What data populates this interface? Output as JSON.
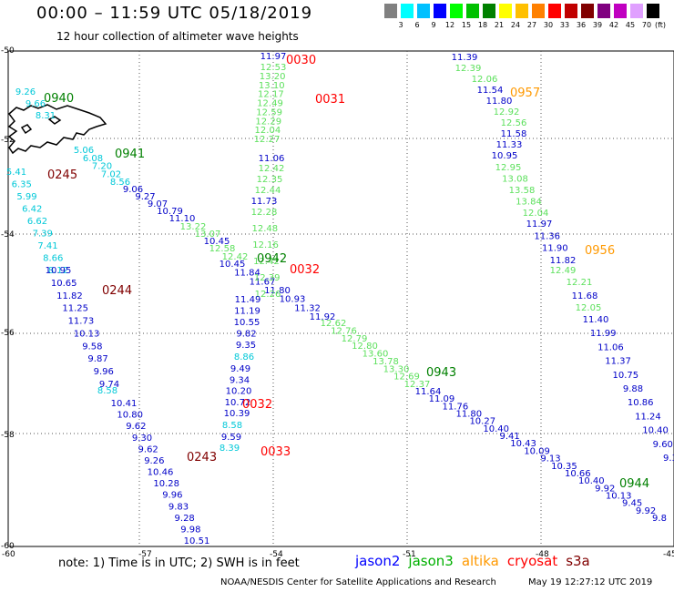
{
  "header": {
    "title": "00:00 – 11:59 UTC 05/18/2019",
    "subtitle": "12 hour collection of altimeter wave heights"
  },
  "color_scale": {
    "unit": "(ft)",
    "colors": [
      "#808080",
      "#00ffff",
      "#00c0ff",
      "#0000ff",
      "#00ff00",
      "#00c000",
      "#008000",
      "#ffff00",
      "#ffc000",
      "#ff8000",
      "#ff0000",
      "#c00000",
      "#800000",
      "#800080",
      "#c000c0",
      "#e0a0ff",
      "#000000"
    ],
    "labels": [
      "3",
      "6",
      "9",
      "12",
      "15",
      "18",
      "21",
      "24",
      "27",
      "30",
      "33",
      "36",
      "39",
      "42",
      "45",
      "70"
    ]
  },
  "axes": {
    "lat_labels": [
      "-50",
      "-52",
      "-54",
      "-56",
      "-58",
      "-60"
    ],
    "lon_labels": [
      "-60",
      "-57",
      "-54",
      "-51",
      "-48",
      "-45"
    ]
  },
  "colors": {
    "cyan": "#00c8d8",
    "blue": "#0000c8",
    "green": "#5ce05c",
    "dkgreen": "#008000",
    "red": "#ff0000",
    "maroon": "#800000",
    "orange": "#ff9900"
  },
  "labels": [
    {
      "t": "0940",
      "c": "dkgreen",
      "k": "tm"
    },
    {
      "t": "0941",
      "c": "dkgreen",
      "k": "tm"
    },
    {
      "t": "0245",
      "c": "maroon",
      "k": "tm"
    },
    {
      "t": "0244",
      "c": "maroon",
      "k": "tm"
    },
    {
      "t": "0243",
      "c": "maroon",
      "k": "tm"
    },
    {
      "t": "0030",
      "c": "red",
      "k": "tm"
    },
    {
      "t": "0031",
      "c": "red",
      "k": "tm"
    },
    {
      "t": "0032",
      "c": "red",
      "k": "tm"
    },
    {
      "t": "0942",
      "c": "dkgreen",
      "k": "tm"
    },
    {
      "t": "0032",
      "c": "red",
      "k": "tm"
    },
    {
      "t": "0033",
      "c": "red",
      "k": "tm"
    },
    {
      "t": "0957",
      "c": "orange",
      "k": "tm"
    },
    {
      "t": "0956",
      "c": "orange",
      "k": "tm"
    },
    {
      "t": "0943",
      "c": "dkgreen",
      "k": "tm"
    },
    {
      "t": "0944",
      "c": "dkgreen",
      "k": "tm"
    }
  ],
  "tracks": [
    {
      "c": "cyan",
      "v": [
        "9.26",
        "9.66",
        "8.31"
      ]
    },
    {
      "c": "cyan",
      "v": [
        "5.06",
        "6.08",
        "7.20",
        "7.02",
        "8.56"
      ]
    },
    {
      "c": "cyan",
      "v": [
        "5.41",
        "6.35",
        "5.99",
        "6.42",
        "6.62",
        "7.39",
        "7.41",
        "8.66",
        "8.12"
      ]
    },
    {
      "c": "blue",
      "v": [
        "10.95",
        "10.65",
        "11.82",
        "11.25",
        "11.73",
        "10.13",
        "9.58",
        "9.87",
        "9.96",
        "9.74"
      ]
    },
    {
      "c": "cyan",
      "v": [
        "8.58"
      ]
    },
    {
      "c": "blue",
      "v": [
        "10.41",
        "10.80",
        "9.62",
        "9.30",
        "9.62",
        "9.26",
        "10.46",
        "10.28",
        "9.96",
        "9.83",
        "9.28",
        "9.98",
        "10.51"
      ]
    },
    {
      "c": "blue",
      "v": [
        "9.06",
        "9.27",
        "9.07",
        "10.79",
        "11.10"
      ]
    },
    {
      "c": "green",
      "v": [
        "13.22",
        "13.07"
      ]
    },
    {
      "c": "blue",
      "v": [
        "10.45"
      ]
    },
    {
      "c": "green",
      "v": [
        "12.58",
        "12.42"
      ]
    },
    {
      "c": "blue",
      "v": [
        "10.45",
        "11.84",
        "11.67",
        "11.80",
        "10.93",
        "11.32",
        "11.92"
      ]
    },
    {
      "c": "green",
      "v": [
        "12.62",
        "12.76",
        "12.79",
        "12.80",
        "13.60",
        "13.78",
        "13.30",
        "12.69",
        "12.37"
      ]
    },
    {
      "c": "blue",
      "v": [
        "11.64",
        "11.09",
        "11.76",
        "11.80",
        "10.27",
        "10.40",
        "9.41",
        "10.43",
        "10.09",
        "9.13",
        "10.35",
        "10.66",
        "10.40",
        "9.92",
        "10.13",
        "9.45",
        "9.92",
        "9.8"
      ]
    },
    {
      "c": "blue",
      "v": [
        "11.97"
      ]
    },
    {
      "c": "green",
      "v": [
        "12.53",
        "13.20",
        "13.10",
        "12.17",
        "12.49",
        "12.59",
        "12.29",
        "12.04",
        "12.27"
      ]
    },
    {
      "c": "blue",
      "v": [
        "11.06"
      ]
    },
    {
      "c": "green",
      "v": [
        "12.42",
        "12.35",
        "12.44"
      ]
    },
    {
      "c": "blue",
      "v": [
        "11.73"
      ]
    },
    {
      "c": "green",
      "v": [
        "12.28",
        "12.48",
        "12.16",
        "12.42",
        "12.39",
        "12.26"
      ]
    },
    {
      "c": "blue",
      "v": [
        "11.49",
        "11.19",
        "10.55",
        "9.82",
        "9.35"
      ]
    },
    {
      "c": "cyan",
      "v": [
        "8.86"
      ]
    },
    {
      "c": "blue",
      "v": [
        "9.49",
        "9.34",
        "10.20",
        "10.72",
        "10.39"
      ]
    },
    {
      "c": "cyan",
      "v": [
        "8.58"
      ]
    },
    {
      "c": "blue",
      "v": [
        "9.59"
      ]
    },
    {
      "c": "cyan",
      "v": [
        "8.39"
      ]
    },
    {
      "c": "blue",
      "v": [
        "11.39"
      ]
    },
    {
      "c": "green",
      "v": [
        "12.39",
        "12.06"
      ]
    },
    {
      "c": "blue",
      "v": [
        "11.54",
        "11.80"
      ]
    },
    {
      "c": "green",
      "v": [
        "12.92",
        "12.56"
      ]
    },
    {
      "c": "blue",
      "v": [
        "11.58",
        "11.33",
        "10.95"
      ]
    },
    {
      "c": "green",
      "v": [
        "12.95",
        "13.08",
        "13.58",
        "13.84",
        "12.04"
      ]
    },
    {
      "c": "blue",
      "v": [
        "11.97",
        "11.36",
        "11.90",
        "11.82"
      ]
    },
    {
      "c": "green",
      "v": [
        "12.49",
        "12.21"
      ]
    },
    {
      "c": "blue",
      "v": [
        "11.68"
      ]
    },
    {
      "c": "green",
      "v": [
        "12.05"
      ]
    },
    {
      "c": "blue",
      "v": [
        "11.40",
        "11.99",
        "11.06",
        "11.37",
        "10.75",
        "9.88",
        "10.86",
        "11.24",
        "10.40",
        "9.60",
        "9.3"
      ]
    }
  ],
  "footer": {
    "note": "note: 1) Time is in UTC; 2) SWH is in feet",
    "satellites": [
      {
        "name": "jason2",
        "c": "#0000ff"
      },
      {
        "name": "jason3",
        "c": "#00b000"
      },
      {
        "name": "altika",
        "c": "#ff9900"
      },
      {
        "name": "cryosat",
        "c": "#ff0000"
      },
      {
        "name": "s3a",
        "c": "#800000"
      }
    ],
    "credit": "NOAA/NESDIS Center for Satellite Applications and Research",
    "timestamp": "May 19 12:27:12 UTC 2019"
  }
}
